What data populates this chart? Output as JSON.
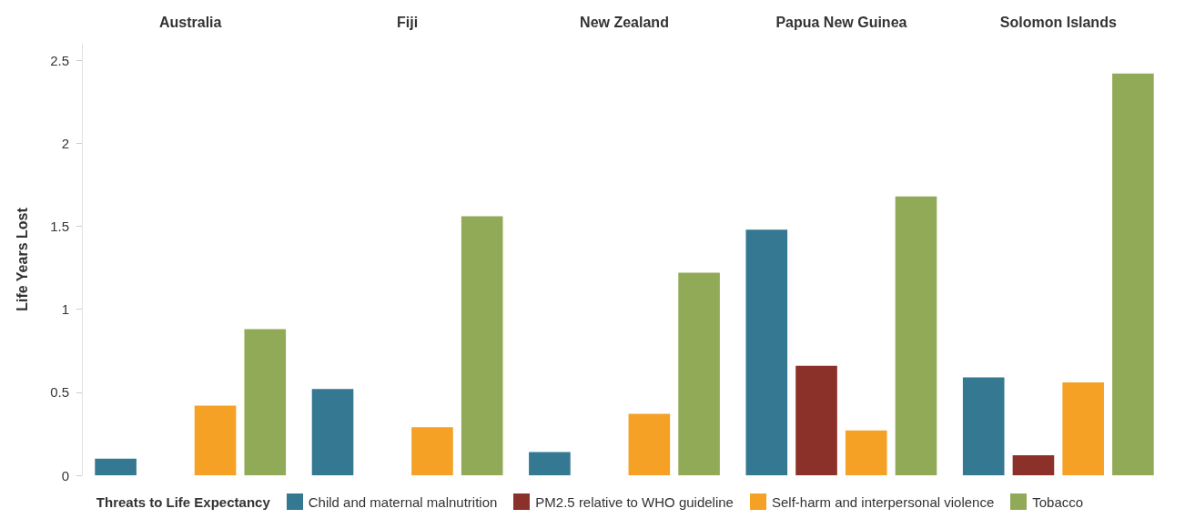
{
  "chart_data": {
    "type": "bar",
    "ylabel": "Life Years Lost",
    "categories": [
      "Australia",
      "Fiji",
      "New Zealand",
      "Papua New Guinea",
      "Solomon Islands"
    ],
    "ylim": [
      0,
      2.6
    ],
    "yticks": [
      0,
      0.5,
      1,
      1.5,
      2,
      2.5
    ],
    "legend": "bottom",
    "legend_title": "Threats to Life Expectancy",
    "series": [
      {
        "name": "Child and maternal malnutrition",
        "color": "#347891",
        "values": [
          0.1,
          0.52,
          0.14,
          1.48,
          0.59
        ]
      },
      {
        "name": "PM2.5 relative to WHO guideline",
        "color": "#8c3129",
        "values": [
          null,
          null,
          null,
          0.66,
          0.12
        ]
      },
      {
        "name": "Self-harm and interpersonal violence",
        "color": "#f4a125",
        "values": [
          0.42,
          0.29,
          0.37,
          0.27,
          0.56
        ]
      },
      {
        "name": "Tobacco",
        "color": "#91aa57",
        "values": [
          0.88,
          1.56,
          1.22,
          1.68,
          2.42
        ]
      }
    ]
  }
}
